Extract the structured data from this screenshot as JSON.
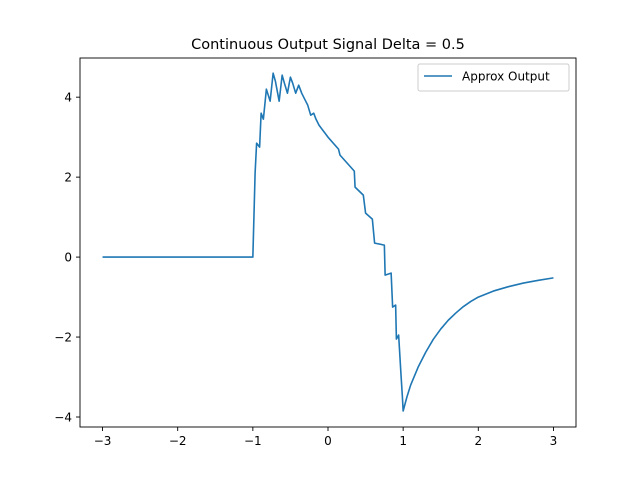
{
  "chart_data": {
    "type": "line",
    "title": "Continuous Output Signal Delta = 0.5",
    "xlabel": "",
    "ylabel": "",
    "xlim": [
      -3.3,
      3.3
    ],
    "ylim": [
      -4.25,
      4.98
    ],
    "xticks": [
      -3,
      -2,
      -1,
      0,
      1,
      2,
      3
    ],
    "xtick_labels": [
      "−3",
      "−2",
      "−1",
      "0",
      "1",
      "2",
      "3"
    ],
    "yticks": [
      -4,
      -2,
      0,
      2,
      4
    ],
    "ytick_labels": [
      "−4",
      "−2",
      "0",
      "2",
      "4"
    ],
    "grid": false,
    "legend_position": "top-right",
    "series": [
      {
        "name": "Approx Output",
        "color": "#1f77b4",
        "x": [
          -3.0,
          -1.0,
          -0.97,
          -0.95,
          -0.91,
          -0.89,
          -0.86,
          -0.82,
          -0.77,
          -0.73,
          -0.7,
          -0.65,
          -0.61,
          -0.58,
          -0.54,
          -0.5,
          -0.47,
          -0.43,
          -0.39,
          -0.35,
          -0.31,
          -0.27,
          -0.23,
          -0.19,
          -0.16,
          -0.12,
          0.0,
          0.14,
          0.16,
          0.35,
          0.36,
          0.47,
          0.5,
          0.59,
          0.62,
          0.75,
          0.76,
          0.84,
          0.86,
          0.9,
          0.91,
          0.94,
          0.97,
          0.99,
          1.0,
          1.05,
          1.1,
          1.2,
          1.3,
          1.4,
          1.5,
          1.6,
          1.7,
          1.8,
          1.9,
          2.0,
          2.2,
          2.4,
          2.6,
          2.8,
          3.0
        ],
        "y": [
          0.0,
          0.0,
          2.1,
          2.85,
          2.75,
          3.6,
          3.45,
          4.2,
          3.9,
          4.6,
          4.4,
          3.9,
          4.55,
          4.35,
          4.1,
          4.5,
          4.35,
          4.1,
          4.3,
          4.1,
          3.95,
          3.8,
          3.55,
          3.6,
          3.45,
          3.3,
          3.0,
          2.7,
          2.55,
          2.15,
          1.75,
          1.55,
          1.1,
          0.95,
          0.35,
          0.3,
          -0.45,
          -0.4,
          -1.25,
          -1.2,
          -2.05,
          -1.95,
          -2.9,
          -3.5,
          -3.85,
          -3.5,
          -3.2,
          -2.75,
          -2.38,
          -2.06,
          -1.8,
          -1.58,
          -1.4,
          -1.24,
          -1.11,
          -1.0,
          -0.85,
          -0.74,
          -0.65,
          -0.58,
          -0.52
        ]
      }
    ]
  }
}
